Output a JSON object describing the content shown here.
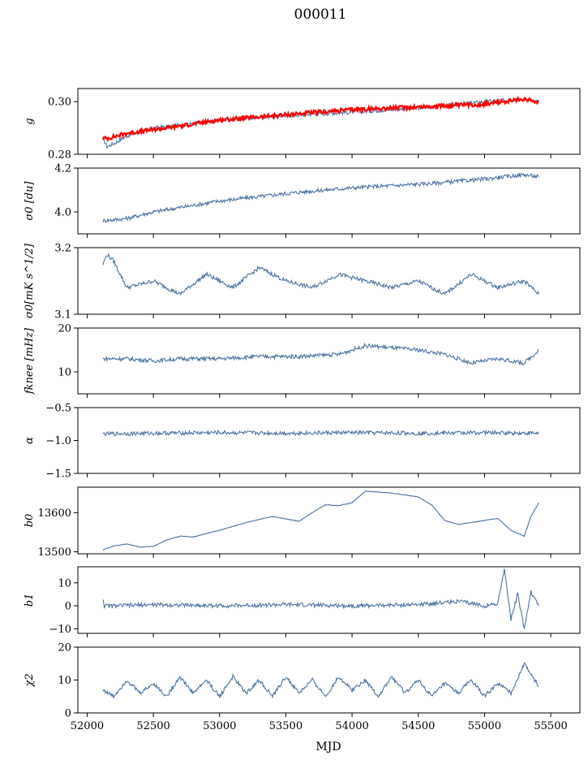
{
  "figure": {
    "title": "000011",
    "xlabel": "MJD"
  },
  "colors": {
    "series": "#4c72a0",
    "overlay": "#ff0000",
    "axes": "#000000"
  },
  "chart_data": {
    "type": "line",
    "xlim": [
      51930,
      55720
    ],
    "xticks": [
      52000,
      52500,
      53000,
      53500,
      54000,
      54500,
      55000,
      55500
    ],
    "xtick_labels": [
      "52000",
      "52500",
      "53000",
      "53500",
      "54000",
      "54500",
      "55000",
      "55500"
    ],
    "xlabel": "MJD",
    "grid": false,
    "panels": [
      {
        "id": "g",
        "ylabel": "g",
        "ylim": [
          0.28,
          0.305
        ],
        "yticks": [
          0.28,
          0.3
        ],
        "ytick_labels": [
          "0.28",
          "0.30"
        ],
        "series": [
          {
            "x": [
              52120,
              52150,
              52200,
              52300,
              52500,
              52700,
              53000,
              53300,
              53600,
              54000,
              54300,
              54600,
              55000,
              55300,
              55410
            ],
            "y": [
              0.286,
              0.283,
              0.284,
              0.287,
              0.29,
              0.291,
              0.293,
              0.294,
              0.295,
              0.296,
              0.297,
              0.298,
              0.3,
              0.301,
              0.3
            ]
          },
          {
            "x": [
              52120,
              52150,
              52300,
              52600,
              53000,
              53500,
              54000,
              54500,
              55000,
              55300,
              55410
            ],
            "y": [
              0.286,
              0.286,
              0.288,
              0.29,
              0.293,
              0.295,
              0.297,
              0.298,
              0.299,
              0.301,
              0.3
            ]
          }
        ]
      },
      {
        "id": "sigma0-du",
        "ylabel": "σ0 [du]",
        "ylim": [
          3.9,
          4.2
        ],
        "yticks": [
          4.0,
          4.2
        ],
        "ytick_labels": [
          "4.0",
          "4.2"
        ],
        "series": [
          {
            "x": [
              52120,
              52300,
              52500,
              52700,
              53000,
              53300,
              53600,
              54000,
              54300,
              54600,
              55000,
              55300,
              55410
            ],
            "y": [
              3.96,
              3.97,
              4.0,
              4.02,
              4.05,
              4.07,
              4.09,
              4.11,
              4.12,
              4.13,
              4.15,
              4.17,
              4.16
            ]
          }
        ]
      },
      {
        "id": "sigma0-mk",
        "ylabel": "σ0[mK s^1/2]",
        "ylim": [
          3.1,
          3.2
        ],
        "yticks": [
          3.1,
          3.2
        ],
        "ytick_labels": [
          "3.1",
          "3.2"
        ],
        "series": [
          {
            "x": [
              52120,
              52150,
              52200,
              52300,
              52500,
              52700,
              52900,
              53100,
              53300,
              53500,
              53700,
              53900,
              54100,
              54300,
              54500,
              54700,
              54900,
              55100,
              55300,
              55410
            ],
            "y": [
              3.175,
              3.19,
              3.18,
              3.14,
              3.15,
              3.13,
              3.16,
              3.14,
              3.17,
              3.15,
              3.14,
              3.16,
              3.15,
              3.14,
              3.15,
              3.13,
              3.16,
              3.14,
              3.15,
              3.13
            ]
          }
        ]
      },
      {
        "id": "fknee",
        "ylabel": "fknee [mHz]",
        "ylim": [
          5,
          20
        ],
        "yticks": [
          10,
          20
        ],
        "ytick_labels": [
          "10",
          "20"
        ],
        "series": [
          {
            "x": [
              52120,
              52300,
              52500,
              52700,
              53000,
              53300,
              53600,
              53900,
              54100,
              54300,
              54500,
              54700,
              54900,
              55100,
              55300,
              55410
            ],
            "y": [
              13,
              13,
              12.5,
              13,
              13,
              13.5,
              13.5,
              14,
              16,
              15.5,
              15,
              14,
              12,
              13,
              12,
              15
            ]
          }
        ]
      },
      {
        "id": "alpha",
        "ylabel": "α",
        "ylim": [
          -1.5,
          -0.5
        ],
        "yticks": [
          -1.5,
          -1.0,
          -0.5
        ],
        "ytick_labels": [
          "−1.5",
          "−1.0",
          "−0.5"
        ],
        "series": [
          {
            "x": [
              52120,
              52500,
              53000,
              53500,
              54000,
              54500,
              55000,
              55410
            ],
            "y": [
              -0.9,
              -0.89,
              -0.88,
              -0.89,
              -0.88,
              -0.89,
              -0.88,
              -0.89
            ]
          }
        ]
      },
      {
        "id": "b0",
        "ylabel": "b0",
        "ylim": [
          13495,
          13665
        ],
        "yticks": [
          13500,
          13600
        ],
        "ytick_labels": [
          "13500",
          "13600"
        ],
        "series": [
          {
            "x": [
              52120,
              52200,
              52300,
              52400,
              52500,
              52600,
              52700,
              52800,
              53000,
              53200,
              53400,
              53600,
              53700,
              53800,
              53900,
              54000,
              54100,
              54300,
              54500,
              54600,
              54700,
              54800,
              55000,
              55100,
              55200,
              55300,
              55350,
              55410
            ],
            "y": [
              13505,
              13515,
              13520,
              13512,
              13514,
              13530,
              13540,
              13538,
              13555,
              13575,
              13590,
              13578,
              13600,
              13620,
              13618,
              13625,
              13655,
              13650,
              13640,
              13620,
              13580,
              13570,
              13580,
              13585,
              13555,
              13540,
              13590,
              13625
            ]
          }
        ]
      },
      {
        "id": "b1",
        "ylabel": "b1",
        "ylim": [
          -12,
          17
        ],
        "yticks": [
          -10,
          0,
          10
        ],
        "ytick_labels": [
          "−10",
          "0",
          "10"
        ],
        "series": [
          {
            "x": [
              52120,
              52130,
              52200,
              52500,
              53000,
              53500,
              54000,
              54500,
              54800,
              55000,
              55100,
              55150,
              55200,
              55250,
              55300,
              55350,
              55410
            ],
            "y": [
              3,
              0,
              0,
              0.5,
              0,
              0.5,
              0,
              0.5,
              2,
              0,
              1,
              16,
              -6,
              5,
              -10,
              6,
              0
            ]
          }
        ]
      },
      {
        "id": "chi2",
        "ylabel": "χ2",
        "ylim": [
          0,
          20
        ],
        "yticks": [
          0,
          10,
          20
        ],
        "ytick_labels": [
          "0",
          "10",
          "20"
        ],
        "series": [
          {
            "x": [
              52120,
              52200,
              52300,
              52400,
              52500,
              52600,
              52700,
              52800,
              52900,
              53000,
              53100,
              53200,
              53300,
              53400,
              53500,
              53600,
              53700,
              53800,
              53900,
              54000,
              54100,
              54200,
              54300,
              54400,
              54500,
              54600,
              54700,
              54800,
              54900,
              55000,
              55100,
              55200,
              55300,
              55410
            ],
            "y": [
              7,
              5,
              10,
              6,
              9,
              5,
              11,
              6,
              10,
              5,
              11,
              6,
              10,
              5,
              11,
              6,
              10,
              5,
              11,
              7,
              10,
              5,
              11,
              6,
              10,
              5,
              9,
              6,
              10,
              5,
              9,
              6,
              15,
              8
            ]
          }
        ]
      }
    ]
  }
}
